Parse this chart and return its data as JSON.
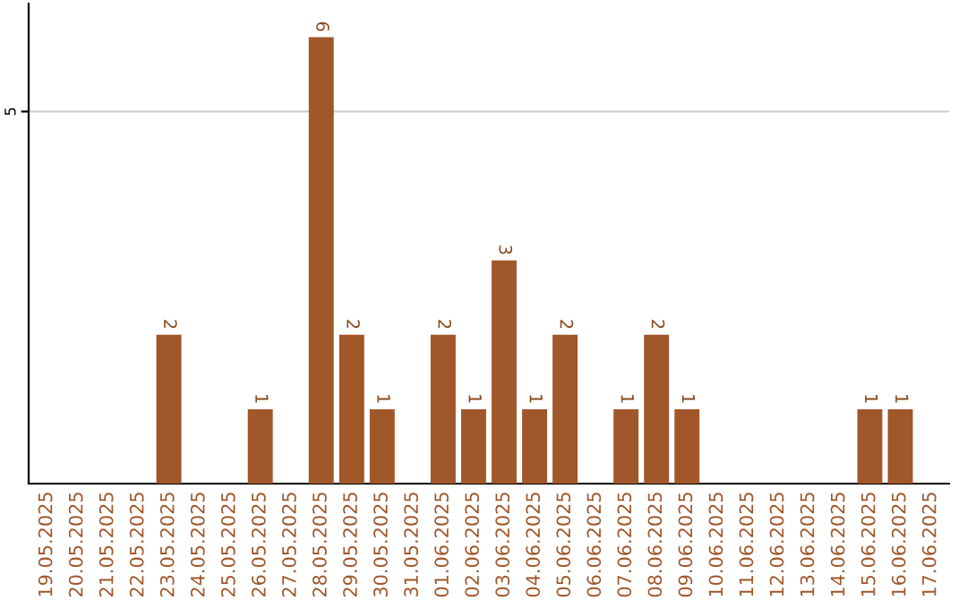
{
  "chart_data": {
    "type": "bar",
    "categories": [
      "19.05.2025",
      "20.05.2025",
      "21.05.2025",
      "22.05.2025",
      "23.05.2025",
      "24.05.2025",
      "25.05.2025",
      "26.05.2025",
      "27.05.2025",
      "28.05.2025",
      "29.05.2025",
      "30.05.2025",
      "31.05.2025",
      "01.06.2025",
      "02.06.2025",
      "03.06.2025",
      "04.06.2025",
      "05.06.2025",
      "06.06.2025",
      "07.06.2025",
      "08.06.2025",
      "09.06.2025",
      "10.06.2025",
      "11.06.2025",
      "12.06.2025",
      "13.06.2025",
      "14.06.2025",
      "15.06.2025",
      "16.06.2025",
      "17.06.2025"
    ],
    "values": [
      0,
      0,
      0,
      0,
      2,
      0,
      0,
      1,
      0,
      6,
      2,
      1,
      0,
      2,
      1,
      3,
      1,
      2,
      0,
      1,
      2,
      1,
      0,
      0,
      0,
      0,
      0,
      1,
      1,
      0
    ],
    "value_labels": [
      null,
      null,
      null,
      null,
      "2",
      null,
      null,
      "1",
      null,
      "6",
      "2",
      "1",
      null,
      "2",
      "1",
      "3",
      "1",
      "2",
      null,
      "1",
      "2",
      "1",
      null,
      null,
      null,
      null,
      null,
      "1",
      "1",
      null
    ],
    "color": "#a0572a",
    "ylim": [
      0,
      6.45
    ],
    "yticks": [
      5
    ],
    "grid": "y",
    "legend": false
  }
}
